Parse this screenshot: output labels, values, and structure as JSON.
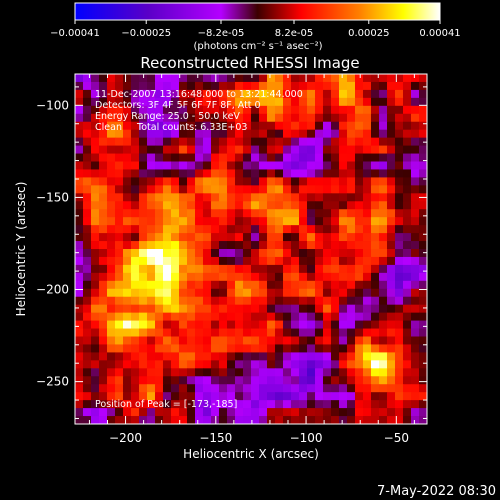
{
  "chart_data": {
    "type": "heatmap",
    "title": "Reconstructed RHESSI Image",
    "xlabel": "Heliocentric X (arcsec)",
    "ylabel": "Heliocentric Y (arcsec)",
    "xlim": [
      -228,
      -33
    ],
    "ylim": [
      -273,
      -83
    ],
    "x_ticks": [
      -200,
      -150,
      -100,
      -50
    ],
    "y_ticks": [
      -100,
      -150,
      -200,
      -250
    ],
    "colorbar": {
      "range": [
        -0.00041,
        0.00041
      ],
      "tick_values": [
        -0.00041,
        -0.00025,
        -8.2e-05,
        8.2e-05,
        0.00025,
        0.00041
      ],
      "tick_labels": [
        "-0.00041",
        "-0.00025",
        "-8.2e-05",
        "8.2e-05",
        "0.00025",
        "0.00041"
      ],
      "unit_label": "(photons cm⁻² s⁻¹ asec⁻²)",
      "colormap": [
        "#0000ff",
        "#5a00c8",
        "#b400ff",
        "#3c0000",
        "#ff0000",
        "#ff8000",
        "#ffff00",
        "#ffffff"
      ]
    },
    "peak": {
      "x": -173,
      "y": -185,
      "value": 0.00041
    },
    "annotations": [
      "11-Dec-2007 13:16:48.000 to 13:21:44.000",
      "Detectors: 3F 4F 5F 6F 7F 8F, Att 0",
      "Energy Range: 25.0 - 50.0 keV",
      "Clean     Total counts: 6.33E+03"
    ],
    "peak_label": "Position of Peak = [-173,-185]",
    "sources": [
      {
        "x": -173,
        "y": -185,
        "amp": 1.0
      },
      {
        "x": -200,
        "y": -210,
        "amp": 0.7
      },
      {
        "x": -205,
        "y": -118,
        "amp": 0.45
      },
      {
        "x": -120,
        "y": -95,
        "amp": 0.55
      },
      {
        "x": -75,
        "y": -100,
        "amp": 0.55
      },
      {
        "x": -115,
        "y": -155,
        "amp": 0.6
      },
      {
        "x": -65,
        "y": -165,
        "amp": 0.55
      },
      {
        "x": -130,
        "y": -205,
        "amp": 0.5
      },
      {
        "x": -85,
        "y": -200,
        "amp": 0.45
      },
      {
        "x": -185,
        "y": -245,
        "amp": 0.45
      },
      {
        "x": -60,
        "y": -240,
        "amp": 0.75
      },
      {
        "x": -160,
        "y": -150,
        "amp": 0.35
      },
      {
        "x": -215,
        "y": -160,
        "amp": 0.35
      },
      {
        "x": -145,
        "y": -240,
        "amp": 0.35
      }
    ],
    "negative_regions": [
      {
        "x": -185,
        "y": -98,
        "amp": 0.5
      },
      {
        "x": -100,
        "y": -128,
        "amp": 0.45
      },
      {
        "x": -105,
        "y": -245,
        "amp": 0.45
      },
      {
        "x": -150,
        "y": -260,
        "amp": 0.4
      },
      {
        "x": -40,
        "y": -185,
        "amp": 0.35
      },
      {
        "x": -70,
        "y": -210,
        "amp": 0.4
      }
    ]
  },
  "footer": {
    "timestamp": "7-May-2022 08:30"
  }
}
